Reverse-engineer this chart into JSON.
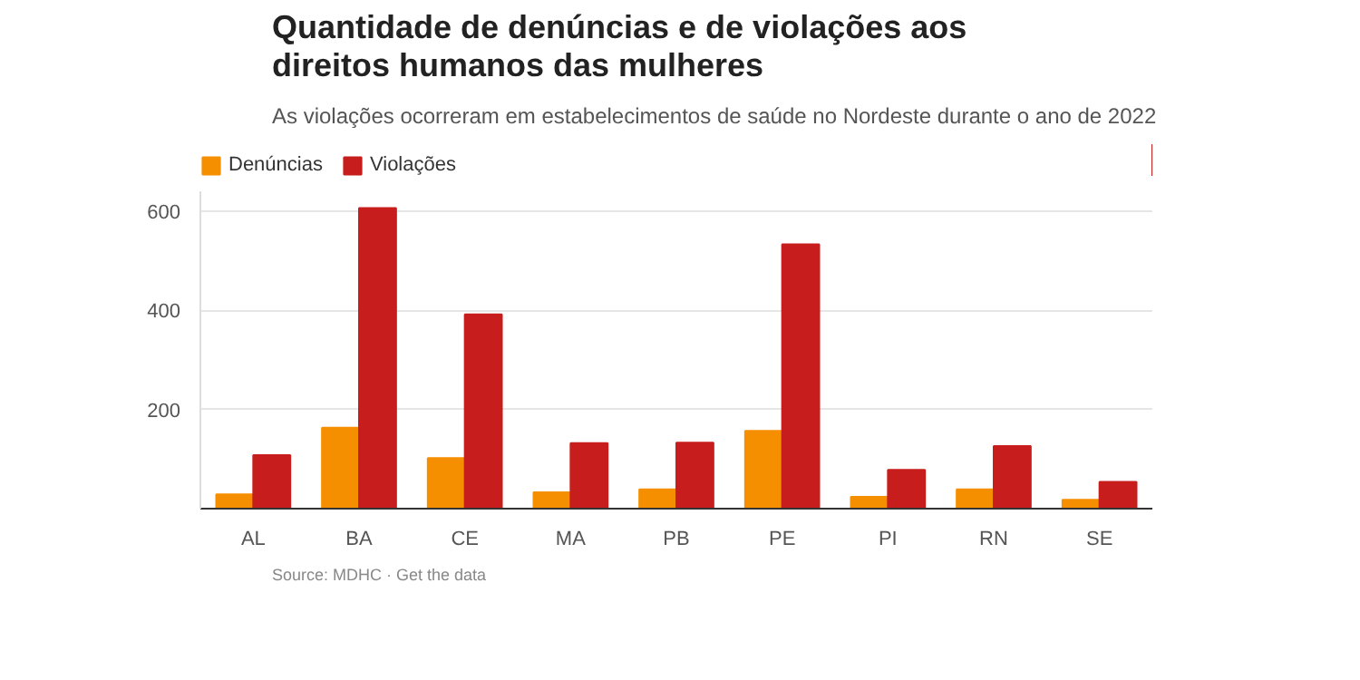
{
  "chart_data": {
    "type": "bar",
    "title": "Quantidade de denúncias e de violações aos direitos humanos das mulheres",
    "subtitle": "As violações ocorreram em estabelecimentos de saúde no Nordeste durante o ano de 2022",
    "categories": [
      "AL",
      "BA",
      "CE",
      "MA",
      "PB",
      "PE",
      "PI",
      "RN",
      "SE"
    ],
    "series": [
      {
        "name": "Denúncias",
        "color": "#f68f00",
        "values": [
          29,
          163,
          102,
          33,
          39,
          157,
          24,
          39,
          18
        ]
      },
      {
        "name": "Violações",
        "color": "#c71e1d",
        "values": [
          108,
          606,
          392,
          132,
          133,
          533,
          78,
          126,
          54
        ]
      }
    ],
    "ylim": [
      0,
      640
    ],
    "yticks": [
      200,
      400,
      600
    ],
    "grid": "y",
    "legend": "top left",
    "annotations": [
      "Source: MDHC · Get the data"
    ]
  }
}
